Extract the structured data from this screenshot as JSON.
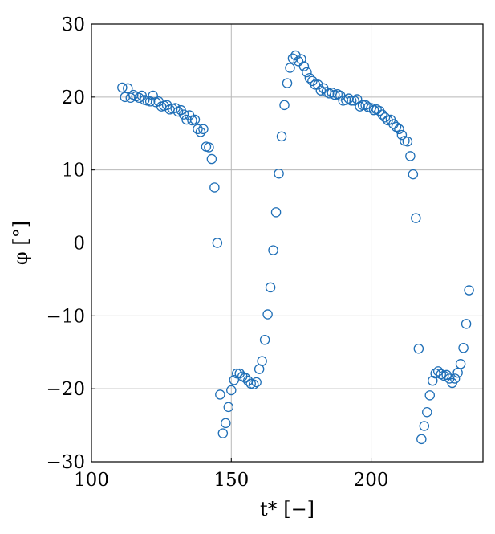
{
  "chart_data": {
    "type": "scatter",
    "xlabel": "t* [−]",
    "ylabel": "φ [°]",
    "xlim": [
      100,
      240
    ],
    "ylim": [
      -30,
      30
    ],
    "x_ticks": [
      100,
      150,
      200
    ],
    "y_ticks": [
      -30,
      -20,
      -10,
      0,
      10,
      20,
      30
    ],
    "x_tick_labels": [
      "100",
      "150",
      "200"
    ],
    "y_tick_labels": [
      "−30",
      "−20",
      "−10",
      "0",
      "10",
      "20",
      "30"
    ],
    "grid": true,
    "marker_color": "#1f6fb7",
    "series": [
      {
        "marker": "open-circle",
        "points": [
          [
            111,
            21.3
          ],
          [
            112,
            20.0
          ],
          [
            113,
            21.2
          ],
          [
            114,
            19.9
          ],
          [
            115,
            20.3
          ],
          [
            116,
            20.1
          ],
          [
            117,
            19.9
          ],
          [
            118,
            20.2
          ],
          [
            119,
            19.6
          ],
          [
            120,
            19.5
          ],
          [
            121,
            19.4
          ],
          [
            122,
            20.2
          ],
          [
            123,
            19.3
          ],
          [
            124,
            19.4
          ],
          [
            125,
            18.7
          ],
          [
            126,
            18.8
          ],
          [
            127,
            18.9
          ],
          [
            128,
            18.3
          ],
          [
            129,
            18.4
          ],
          [
            130,
            18.5
          ],
          [
            131,
            18.0
          ],
          [
            132,
            18.2
          ],
          [
            133,
            17.6
          ],
          [
            134,
            16.9
          ],
          [
            135,
            17.5
          ],
          [
            136,
            16.8
          ],
          [
            137,
            16.9
          ],
          [
            138,
            15.6
          ],
          [
            139,
            15.2
          ],
          [
            140,
            15.6
          ],
          [
            141,
            13.2
          ],
          [
            142,
            13.1
          ],
          [
            143,
            11.5
          ],
          [
            144,
            7.6
          ],
          [
            145,
            0.0
          ],
          [
            146,
            -20.8
          ],
          [
            147,
            -26.1
          ],
          [
            148,
            -24.7
          ],
          [
            149,
            -22.5
          ],
          [
            150,
            -20.2
          ],
          [
            151,
            -18.8
          ],
          [
            152,
            -17.9
          ],
          [
            153,
            -17.9
          ],
          [
            154,
            -18.3
          ],
          [
            155,
            -18.5
          ],
          [
            156,
            -18.9
          ],
          [
            157,
            -19.3
          ],
          [
            158,
            -19.4
          ],
          [
            159,
            -19.1
          ],
          [
            160,
            -17.3
          ],
          [
            161,
            -16.2
          ],
          [
            162,
            -13.3
          ],
          [
            163,
            -9.8
          ],
          [
            164,
            -6.1
          ],
          [
            165,
            -1.0
          ],
          [
            166,
            4.2
          ],
          [
            167,
            9.5
          ],
          [
            168,
            14.6
          ],
          [
            169,
            18.9
          ],
          [
            170,
            21.9
          ],
          [
            171,
            24.0
          ],
          [
            172,
            25.3
          ],
          [
            173,
            25.7
          ],
          [
            174,
            24.9
          ],
          [
            175,
            25.2
          ],
          [
            176,
            24.2
          ],
          [
            177,
            23.4
          ],
          [
            178,
            22.6
          ],
          [
            179,
            22.2
          ],
          [
            180,
            21.7
          ],
          [
            181,
            21.7
          ],
          [
            182,
            20.9
          ],
          [
            183,
            21.2
          ],
          [
            184,
            20.7
          ],
          [
            185,
            20.5
          ],
          [
            186,
            20.6
          ],
          [
            187,
            20.3
          ],
          [
            188,
            20.4
          ],
          [
            189,
            20.2
          ],
          [
            190,
            19.5
          ],
          [
            191,
            19.6
          ],
          [
            192,
            19.8
          ],
          [
            193,
            19.5
          ],
          [
            194,
            19.5
          ],
          [
            195,
            19.7
          ],
          [
            196,
            18.7
          ],
          [
            197,
            18.9
          ],
          [
            198,
            18.9
          ],
          [
            199,
            18.6
          ],
          [
            200,
            18.5
          ],
          [
            201,
            18.2
          ],
          [
            202,
            18.3
          ],
          [
            203,
            18.1
          ],
          [
            204,
            17.6
          ],
          [
            205,
            17.2
          ],
          [
            206,
            16.8
          ],
          [
            207,
            16.9
          ],
          [
            208,
            16.3
          ],
          [
            209,
            15.9
          ],
          [
            210,
            15.6
          ],
          [
            211,
            14.8
          ],
          [
            212,
            14.0
          ],
          [
            213,
            13.9
          ],
          [
            214,
            11.9
          ],
          [
            215,
            9.4
          ],
          [
            216,
            3.4
          ],
          [
            217,
            -14.5
          ],
          [
            218,
            -26.9
          ],
          [
            219,
            -25.1
          ],
          [
            220,
            -23.2
          ],
          [
            221,
            -20.9
          ],
          [
            222,
            -18.9
          ],
          [
            223,
            -17.9
          ],
          [
            224,
            -17.6
          ],
          [
            225,
            -18.0
          ],
          [
            226,
            -18.2
          ],
          [
            227,
            -18.1
          ],
          [
            228,
            -18.6
          ],
          [
            229,
            -19.2
          ],
          [
            230,
            -18.6
          ],
          [
            231,
            -17.8
          ],
          [
            232,
            -16.6
          ],
          [
            233,
            -14.4
          ],
          [
            234,
            -11.1
          ],
          [
            235,
            -6.5
          ]
        ]
      }
    ]
  }
}
